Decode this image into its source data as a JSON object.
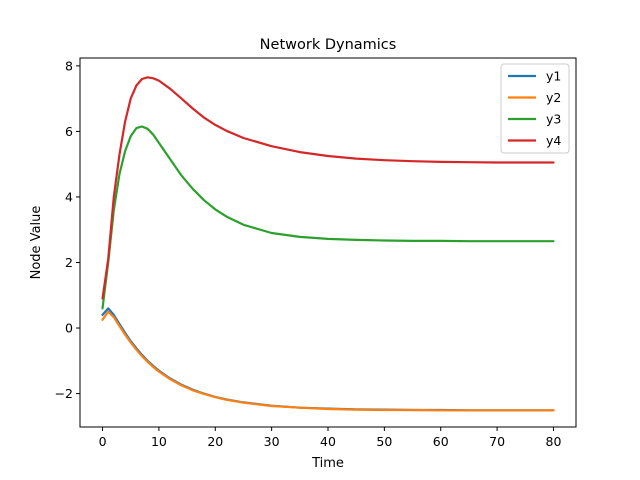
{
  "chart_data": {
    "type": "line",
    "title": "Network Dynamics",
    "xlabel": "Time",
    "ylabel": "Node Value",
    "xlim": [
      -4,
      84
    ],
    "ylim": [
      -3.02,
      8.24
    ],
    "xticks": [
      0,
      10,
      20,
      30,
      40,
      50,
      60,
      70,
      80
    ],
    "yticks": [
      -2,
      0,
      2,
      4,
      6,
      8
    ],
    "ytick_labels": [
      "−2",
      "0",
      "2",
      "4",
      "6",
      "8"
    ],
    "grid": false,
    "legend_position": "top-right",
    "series": [
      {
        "name": "y1",
        "color": "#1f77b4",
        "x": [
          0,
          1,
          2,
          3,
          4,
          5,
          6,
          7,
          8,
          9,
          10,
          12,
          14,
          16,
          18,
          20,
          22,
          25,
          30,
          35,
          40,
          45,
          50,
          55,
          60,
          65,
          70,
          75,
          80
        ],
        "y": [
          0.4,
          0.6,
          0.4,
          0.12,
          -0.15,
          -0.4,
          -0.62,
          -0.82,
          -1.0,
          -1.16,
          -1.3,
          -1.54,
          -1.73,
          -1.88,
          -2.0,
          -2.1,
          -2.18,
          -2.27,
          -2.37,
          -2.43,
          -2.46,
          -2.48,
          -2.49,
          -2.5,
          -2.5,
          -2.51,
          -2.51,
          -2.51,
          -2.51
        ]
      },
      {
        "name": "y2",
        "color": "#ff7f0e",
        "x": [
          0,
          1,
          2,
          3,
          4,
          5,
          6,
          7,
          8,
          9,
          10,
          12,
          14,
          16,
          18,
          20,
          22,
          25,
          30,
          35,
          40,
          45,
          50,
          55,
          60,
          65,
          70,
          75,
          80
        ],
        "y": [
          0.25,
          0.5,
          0.33,
          0.06,
          -0.2,
          -0.44,
          -0.66,
          -0.86,
          -1.03,
          -1.19,
          -1.33,
          -1.56,
          -1.75,
          -1.9,
          -2.01,
          -2.11,
          -2.19,
          -2.28,
          -2.38,
          -2.43,
          -2.47,
          -2.49,
          -2.5,
          -2.5,
          -2.51,
          -2.51,
          -2.51,
          -2.51,
          -2.51
        ]
      },
      {
        "name": "y3",
        "color": "#2ca02c",
        "x": [
          0,
          1,
          2,
          3,
          4,
          5,
          6,
          7,
          8,
          9,
          10,
          12,
          14,
          16,
          18,
          20,
          22,
          25,
          30,
          35,
          40,
          45,
          50,
          55,
          60,
          65,
          70,
          75,
          80
        ],
        "y": [
          0.6,
          2.0,
          3.6,
          4.7,
          5.4,
          5.85,
          6.1,
          6.15,
          6.08,
          5.9,
          5.65,
          5.15,
          4.65,
          4.25,
          3.9,
          3.62,
          3.4,
          3.15,
          2.9,
          2.78,
          2.72,
          2.69,
          2.67,
          2.66,
          2.66,
          2.65,
          2.65,
          2.65,
          2.65
        ]
      },
      {
        "name": "y4",
        "color": "#d62728",
        "x": [
          0,
          1,
          2,
          3,
          4,
          5,
          6,
          7,
          8,
          9,
          10,
          12,
          14,
          16,
          18,
          20,
          22,
          25,
          30,
          35,
          40,
          45,
          50,
          55,
          60,
          65,
          70,
          75,
          80
        ],
        "y": [
          0.9,
          2.1,
          4.0,
          5.3,
          6.3,
          7.0,
          7.4,
          7.6,
          7.65,
          7.62,
          7.55,
          7.3,
          7.0,
          6.7,
          6.42,
          6.2,
          6.02,
          5.8,
          5.55,
          5.37,
          5.25,
          5.17,
          5.12,
          5.09,
          5.07,
          5.06,
          5.05,
          5.05,
          5.05
        ]
      }
    ]
  }
}
